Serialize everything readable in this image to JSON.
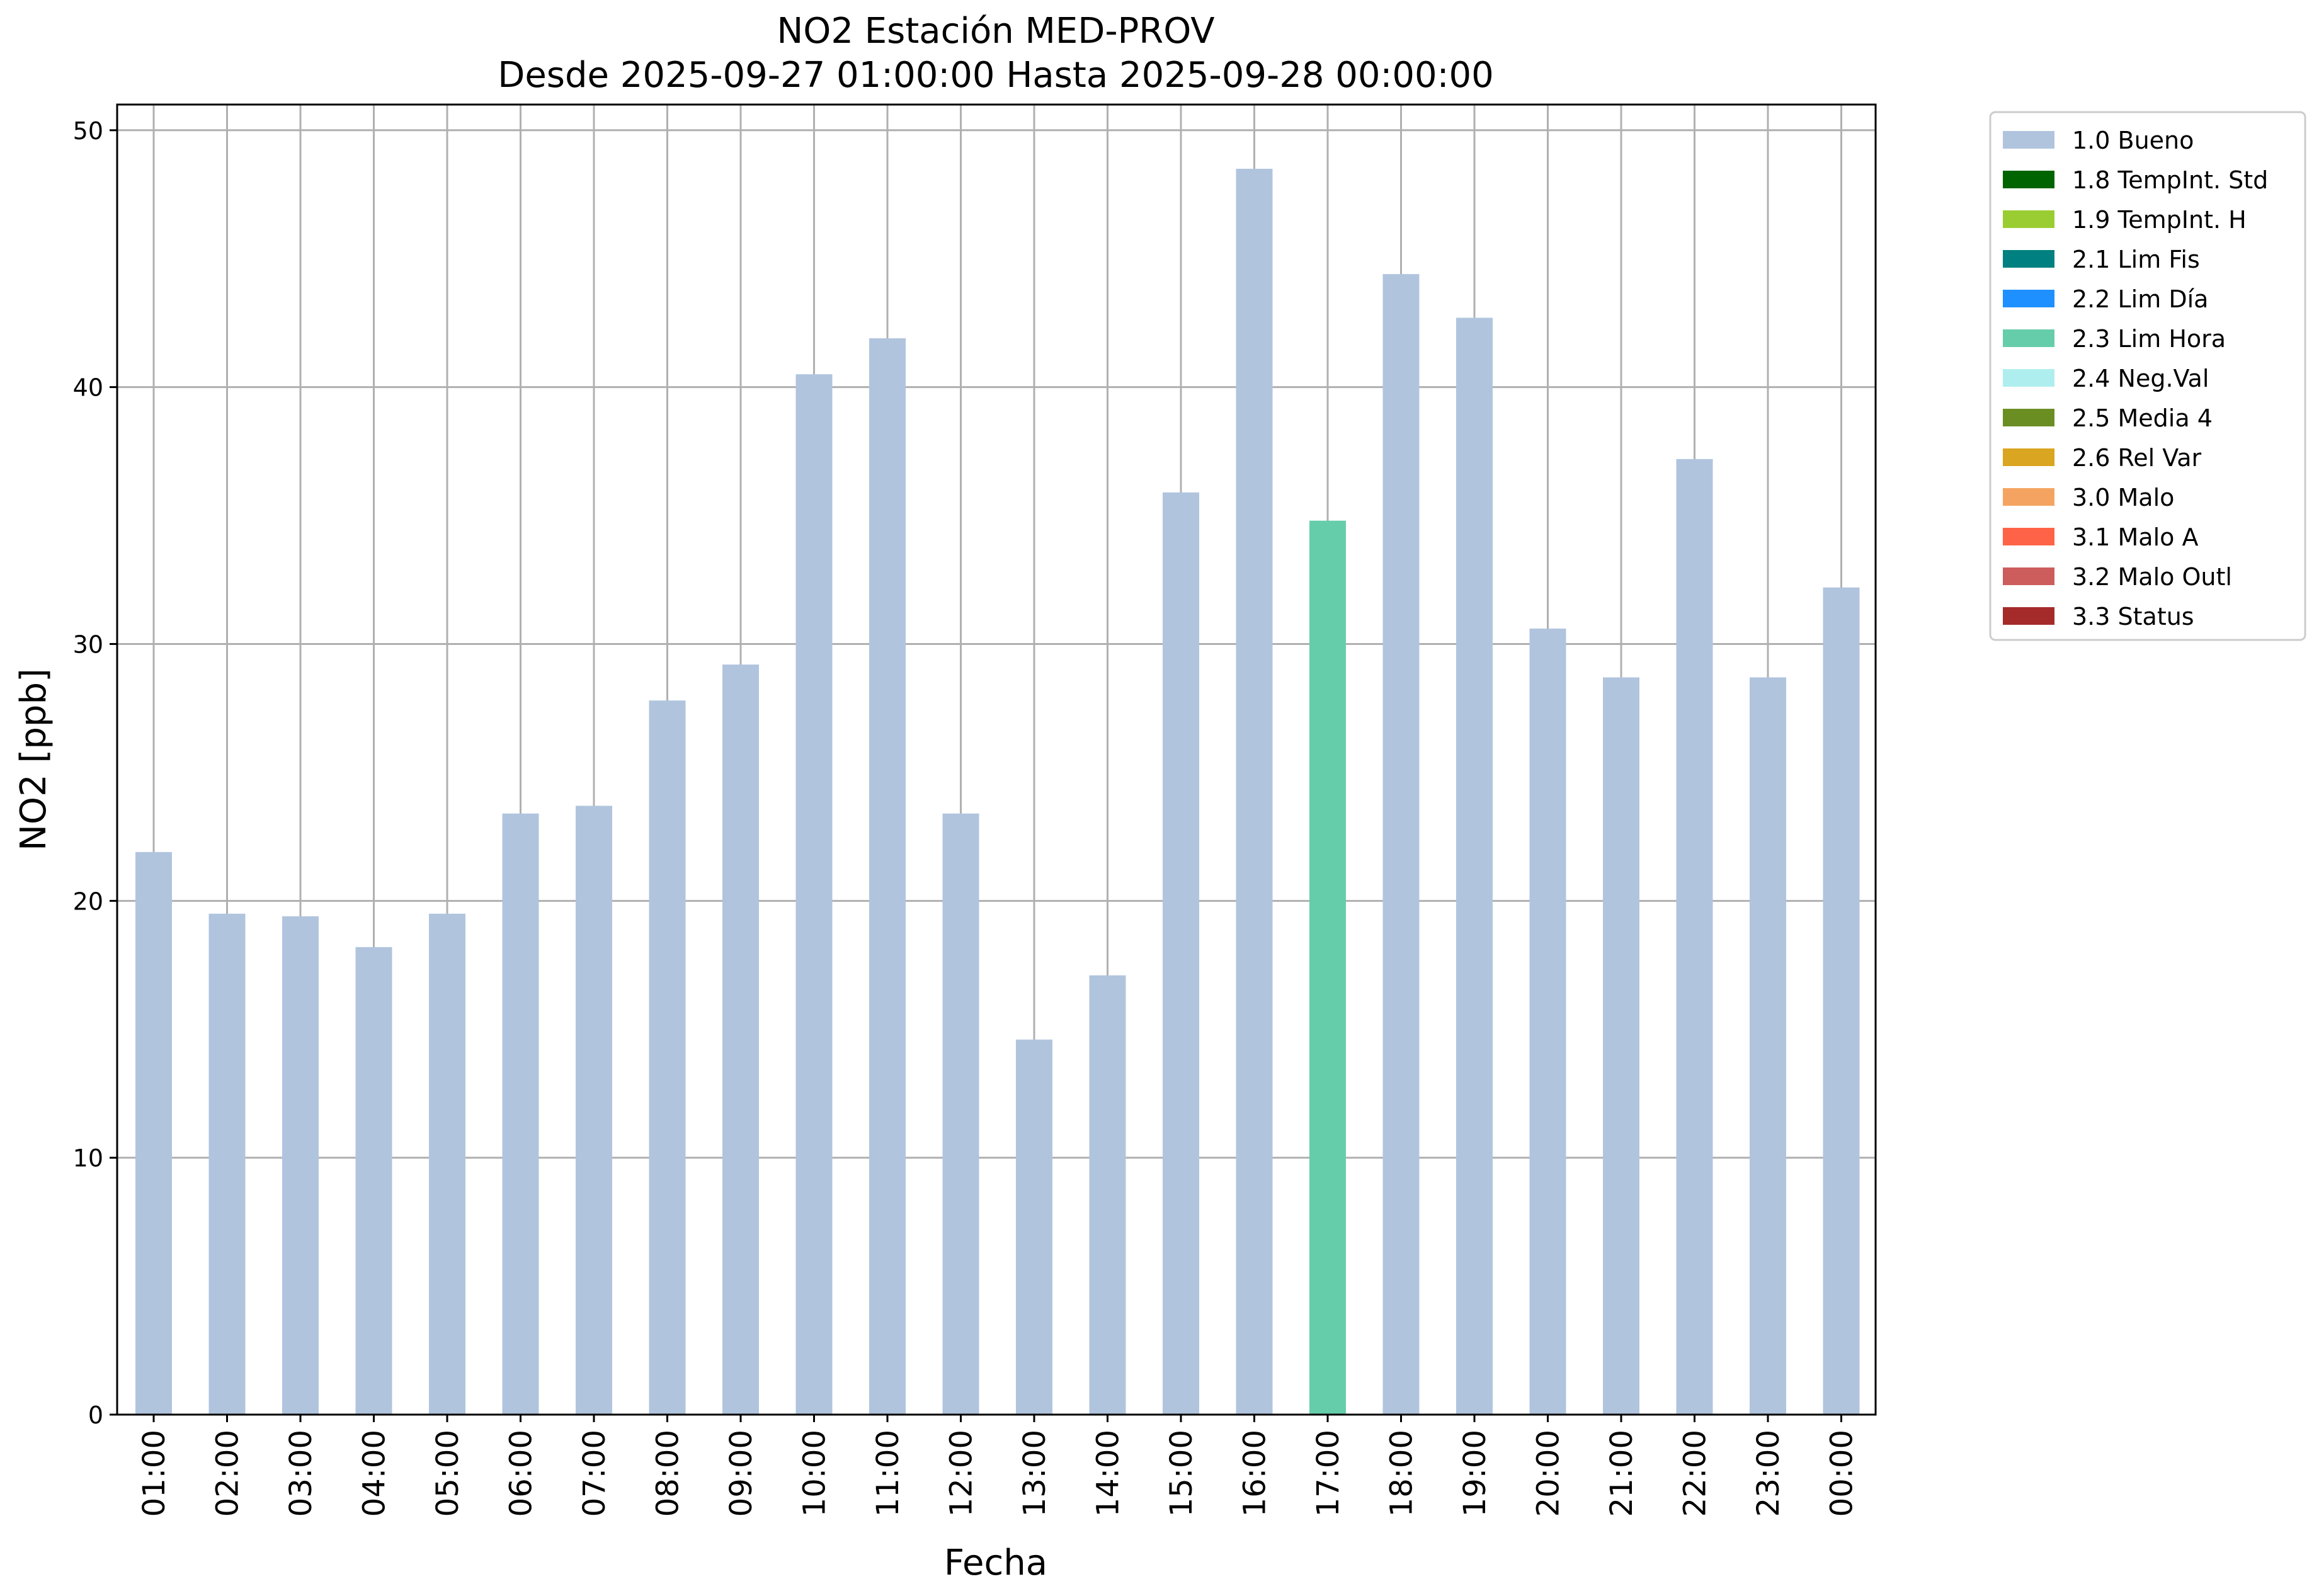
{
  "chart_data": {
    "type": "bar",
    "title": "NO2 Estación MED-PROV",
    "subtitle": "Desde 2025-09-27 01:00:00 Hasta 2025-09-28 00:00:00",
    "xlabel": "Fecha",
    "ylabel": "NO2 [ppb]",
    "ylim": [
      0,
      51
    ],
    "yticks": [
      0,
      10,
      20,
      30,
      40,
      50
    ],
    "grid": true,
    "legend_position": "outside-top-right",
    "categories": [
      "01:00",
      "02:00",
      "03:00",
      "04:00",
      "05:00",
      "06:00",
      "07:00",
      "08:00",
      "09:00",
      "10:00",
      "11:00",
      "12:00",
      "13:00",
      "14:00",
      "15:00",
      "16:00",
      "17:00",
      "18:00",
      "19:00",
      "20:00",
      "21:00",
      "22:00",
      "23:00",
      "00:00"
    ],
    "values": [
      21.9,
      19.5,
      19.4,
      18.2,
      19.5,
      23.4,
      23.7,
      27.8,
      29.2,
      40.5,
      41.9,
      23.4,
      14.6,
      17.1,
      35.9,
      48.5,
      34.8,
      44.4,
      42.7,
      30.6,
      28.7,
      37.2,
      28.7,
      32.2
    ],
    "flags": [
      "1.0 Bueno",
      "1.0 Bueno",
      "1.0 Bueno",
      "1.0 Bueno",
      "1.0 Bueno",
      "1.0 Bueno",
      "1.0 Bueno",
      "1.0 Bueno",
      "1.0 Bueno",
      "1.0 Bueno",
      "1.0 Bueno",
      "1.0 Bueno",
      "1.0 Bueno",
      "1.0 Bueno",
      "1.0 Bueno",
      "1.0 Bueno",
      "2.3 Lim Hora",
      "1.0 Bueno",
      "1.0 Bueno",
      "1.0 Bueno",
      "1.0 Bueno",
      "1.0 Bueno",
      "1.0 Bueno",
      "1.0 Bueno"
    ],
    "legend": [
      {
        "label": "1.0 Bueno",
        "color": "#b0c4de"
      },
      {
        "label": "1.8 TempInt. Std",
        "color": "#006400"
      },
      {
        "label": "1.9 TempInt. H",
        "color": "#9acd32"
      },
      {
        "label": "2.1 Lim Fis",
        "color": "#008080"
      },
      {
        "label": "2.2 Lim Día",
        "color": "#1e90ff"
      },
      {
        "label": "2.3 Lim Hora",
        "color": "#66cdaa"
      },
      {
        "label": "2.4 Neg.Val",
        "color": "#afeeee"
      },
      {
        "label": "2.5 Media 4",
        "color": "#6b8e23"
      },
      {
        "label": "2.6 Rel Var",
        "color": "#daa520"
      },
      {
        "label": "3.0 Malo",
        "color": "#f4a460"
      },
      {
        "label": "3.1 Malo A",
        "color": "#ff6347"
      },
      {
        "label": "3.2 Malo Outl",
        "color": "#cd5c5c"
      },
      {
        "label": "3.3 Status",
        "color": "#a52a2a"
      }
    ]
  }
}
